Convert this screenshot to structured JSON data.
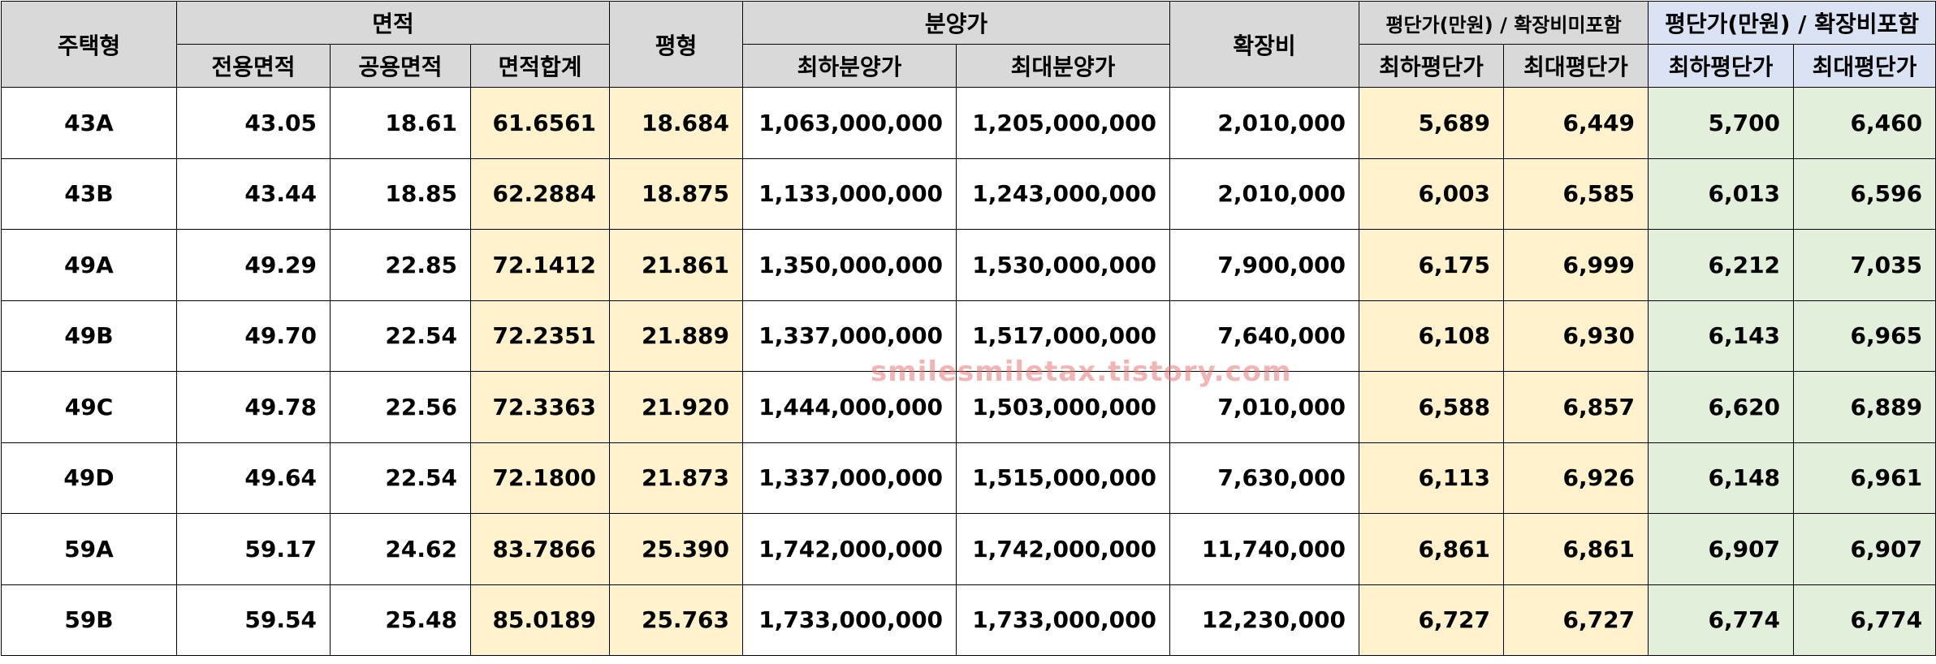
{
  "header": {
    "type": "주택형",
    "area_group": "면적",
    "exclusive_area": "전용면적",
    "common_area": "공용면적",
    "total_area": "면적합계",
    "pyeong": "평형",
    "price_group": "분양가",
    "min_price": "최하분양가",
    "max_price": "최대분양가",
    "expansion": "확장비",
    "ppp_excl_group": "평단가(만원) / 확장비미포함",
    "ppp_excl_min": "최하평단가",
    "ppp_excl_max": "최대평단가",
    "ppp_incl_group": "평단가(만원) / 확장비포함",
    "ppp_incl_min": "최하평단가",
    "ppp_incl_max": "최대평단가"
  },
  "rows": [
    {
      "type": "43A",
      "exclusive": "43.05",
      "common": "18.61",
      "total": "61.6561",
      "pyeong": "18.684",
      "min_price": "1,063,000,000",
      "max_price": "1,205,000,000",
      "expansion": "2,010,000",
      "excl_min": "5,689",
      "excl_max": "6,449",
      "incl_min": "5,700",
      "incl_max": "6,460"
    },
    {
      "type": "43B",
      "exclusive": "43.44",
      "common": "18.85",
      "total": "62.2884",
      "pyeong": "18.875",
      "min_price": "1,133,000,000",
      "max_price": "1,243,000,000",
      "expansion": "2,010,000",
      "excl_min": "6,003",
      "excl_max": "6,585",
      "incl_min": "6,013",
      "incl_max": "6,596"
    },
    {
      "type": "49A",
      "exclusive": "49.29",
      "common": "22.85",
      "total": "72.1412",
      "pyeong": "21.861",
      "min_price": "1,350,000,000",
      "max_price": "1,530,000,000",
      "expansion": "7,900,000",
      "excl_min": "6,175",
      "excl_max": "6,999",
      "incl_min": "6,212",
      "incl_max": "7,035"
    },
    {
      "type": "49B",
      "exclusive": "49.70",
      "common": "22.54",
      "total": "72.2351",
      "pyeong": "21.889",
      "min_price": "1,337,000,000",
      "max_price": "1,517,000,000",
      "expansion": "7,640,000",
      "excl_min": "6,108",
      "excl_max": "6,930",
      "incl_min": "6,143",
      "incl_max": "6,965"
    },
    {
      "type": "49C",
      "exclusive": "49.78",
      "common": "22.56",
      "total": "72.3363",
      "pyeong": "21.920",
      "min_price": "1,444,000,000",
      "max_price": "1,503,000,000",
      "expansion": "7,010,000",
      "excl_min": "6,588",
      "excl_max": "6,857",
      "incl_min": "6,620",
      "incl_max": "6,889"
    },
    {
      "type": "49D",
      "exclusive": "49.64",
      "common": "22.54",
      "total": "72.1800",
      "pyeong": "21.873",
      "min_price": "1,337,000,000",
      "max_price": "1,515,000,000",
      "expansion": "7,630,000",
      "excl_min": "6,113",
      "excl_max": "6,926",
      "incl_min": "6,148",
      "incl_max": "6,961"
    },
    {
      "type": "59A",
      "exclusive": "59.17",
      "common": "24.62",
      "total": "83.7866",
      "pyeong": "25.390",
      "min_price": "1,742,000,000",
      "max_price": "1,742,000,000",
      "expansion": "11,740,000",
      "excl_min": "6,861",
      "excl_max": "6,861",
      "incl_min": "6,907",
      "incl_max": "6,907"
    },
    {
      "type": "59B",
      "exclusive": "59.54",
      "common": "25.48",
      "total": "85.0189",
      "pyeong": "25.763",
      "min_price": "1,733,000,000",
      "max_price": "1,733,000,000",
      "expansion": "12,230,000",
      "excl_min": "6,727",
      "excl_max": "6,727",
      "incl_min": "6,774",
      "incl_max": "6,774"
    }
  ],
  "watermark": "smilesmiletax.tistory.com",
  "colors": {
    "header_gray": "#d9d9d9",
    "header_blue": "#dae3f3",
    "highlight_yellow": "#fff2cc",
    "highlight_green": "#e2efda"
  }
}
